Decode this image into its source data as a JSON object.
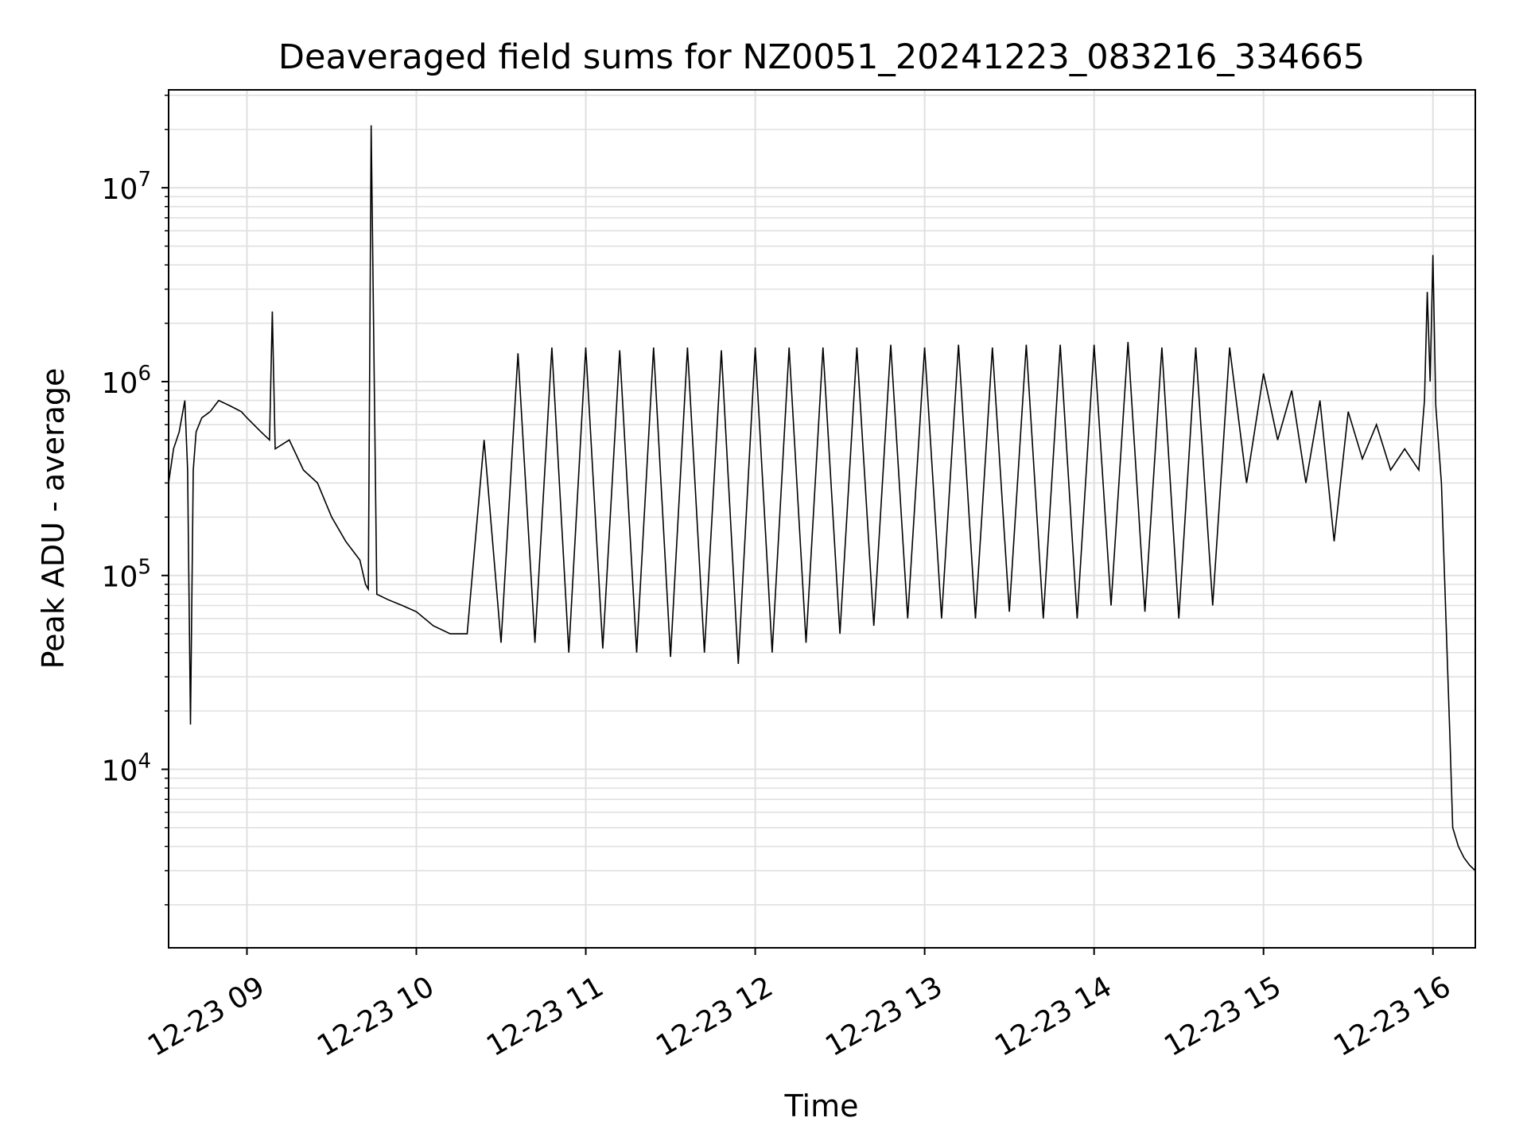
{
  "chart_data": {
    "type": "line",
    "title": "Deaveraged field sums for NZ0051_20241223_083216_334665",
    "xlabel": "Time",
    "ylabel": "Peak ADU - average",
    "y_scale": "log",
    "grid": true,
    "legend": "none",
    "line_color": "#000000",
    "grid_color": "#e0e0e0",
    "xlim": [
      "2024-12-23 08:32:16",
      "2024-12-23 16:15:00"
    ],
    "ylim": [
      1200,
      32000000
    ],
    "x_ticks": [
      {
        "value": "2024-12-23 09:00",
        "label": "12-23 09"
      },
      {
        "value": "2024-12-23 10:00",
        "label": "12-23 10"
      },
      {
        "value": "2024-12-23 11:00",
        "label": "12-23 11"
      },
      {
        "value": "2024-12-23 12:00",
        "label": "12-23 12"
      },
      {
        "value": "2024-12-23 13:00",
        "label": "12-23 13"
      },
      {
        "value": "2024-12-23 14:00",
        "label": "12-23 14"
      },
      {
        "value": "2024-12-23 15:00",
        "label": "12-23 15"
      },
      {
        "value": "2024-12-23 16:00",
        "label": "12-23 16"
      }
    ],
    "y_ticks": [
      {
        "value": 10000,
        "base": "10",
        "exp": "4"
      },
      {
        "value": 100000,
        "base": "10",
        "exp": "5"
      },
      {
        "value": 1000000,
        "base": "10",
        "exp": "6"
      },
      {
        "value": 10000000,
        "base": "10",
        "exp": "7"
      }
    ],
    "series": [
      {
        "x": [
          "2024-12-23 08:32:16",
          "2024-12-23 08:34:00",
          "2024-12-23 08:36:00",
          "2024-12-23 08:38:00",
          "2024-12-23 08:39:00",
          "2024-12-23 08:40:00",
          "2024-12-23 08:41:00",
          "2024-12-23 08:42:00",
          "2024-12-23 08:44:00",
          "2024-12-23 08:47:00",
          "2024-12-23 08:50:00",
          "2024-12-23 08:54:00",
          "2024-12-23 08:58:00",
          "2024-12-23 09:00:00",
          "2024-12-23 09:05:00",
          "2024-12-23 09:08:00",
          "2024-12-23 09:09:00",
          "2024-12-23 09:10:00",
          "2024-12-23 09:15:00",
          "2024-12-23 09:20:00",
          "2024-12-23 09:25:00",
          "2024-12-23 09:30:00",
          "2024-12-23 09:35:00",
          "2024-12-23 09:40:00",
          "2024-12-23 09:42:00",
          "2024-12-23 09:43:00",
          "2024-12-23 09:44:00",
          "2024-12-23 09:46:00",
          "2024-12-23 09:50:00",
          "2024-12-23 09:55:00",
          "2024-12-23 10:00:00",
          "2024-12-23 10:06:00",
          "2024-12-23 10:12:00",
          "2024-12-23 10:18:00",
          "2024-12-23 10:24:00",
          "2024-12-23 10:30:00",
          "2024-12-23 10:36:00",
          "2024-12-23 10:42:00",
          "2024-12-23 10:48:00",
          "2024-12-23 10:54:00",
          "2024-12-23 11:00:00",
          "2024-12-23 11:06:00",
          "2024-12-23 11:12:00",
          "2024-12-23 11:18:00",
          "2024-12-23 11:24:00",
          "2024-12-23 11:30:00",
          "2024-12-23 11:36:00",
          "2024-12-23 11:42:00",
          "2024-12-23 11:48:00",
          "2024-12-23 11:54:00",
          "2024-12-23 12:00:00",
          "2024-12-23 12:06:00",
          "2024-12-23 12:12:00",
          "2024-12-23 12:18:00",
          "2024-12-23 12:24:00",
          "2024-12-23 12:30:00",
          "2024-12-23 12:36:00",
          "2024-12-23 12:42:00",
          "2024-12-23 12:48:00",
          "2024-12-23 12:54:00",
          "2024-12-23 13:00:00",
          "2024-12-23 13:06:00",
          "2024-12-23 13:12:00",
          "2024-12-23 13:18:00",
          "2024-12-23 13:24:00",
          "2024-12-23 13:30:00",
          "2024-12-23 13:36:00",
          "2024-12-23 13:42:00",
          "2024-12-23 13:48:00",
          "2024-12-23 13:54:00",
          "2024-12-23 14:00:00",
          "2024-12-23 14:06:00",
          "2024-12-23 14:12:00",
          "2024-12-23 14:18:00",
          "2024-12-23 14:24:00",
          "2024-12-23 14:30:00",
          "2024-12-23 14:36:00",
          "2024-12-23 14:42:00",
          "2024-12-23 14:48:00",
          "2024-12-23 14:54:00",
          "2024-12-23 15:00:00",
          "2024-12-23 15:05:00",
          "2024-12-23 15:10:00",
          "2024-12-23 15:15:00",
          "2024-12-23 15:20:00",
          "2024-12-23 15:25:00",
          "2024-12-23 15:30:00",
          "2024-12-23 15:35:00",
          "2024-12-23 15:40:00",
          "2024-12-23 15:45:00",
          "2024-12-23 15:50:00",
          "2024-12-23 15:55:00",
          "2024-12-23 15:57:00",
          "2024-12-23 15:58:00",
          "2024-12-23 15:59:00",
          "2024-12-23 16:00:00",
          "2024-12-23 16:01:00",
          "2024-12-23 16:03:00",
          "2024-12-23 16:05:00",
          "2024-12-23 16:06:00",
          "2024-12-23 16:07:00",
          "2024-12-23 16:09:00",
          "2024-12-23 16:11:00",
          "2024-12-23 16:13:00",
          "2024-12-23 16:15:00"
        ],
        "y": [
          300000,
          450000,
          550000,
          800000,
          350000,
          17000,
          350000,
          550000,
          650000,
          700000,
          800000,
          750000,
          700000,
          650000,
          550000,
          500000,
          2300000,
          450000,
          500000,
          350000,
          300000,
          200000,
          150000,
          120000,
          90000,
          85000,
          21000000,
          80000,
          75000,
          70000,
          65000,
          55000,
          50000,
          50000,
          500000,
          45000,
          1400000,
          45000,
          1500000,
          40000,
          1500000,
          42000,
          1450000,
          40000,
          1500000,
          38000,
          1500000,
          40000,
          1450000,
          35000,
          1500000,
          40000,
          1500000,
          45000,
          1500000,
          50000,
          1500000,
          55000,
          1550000,
          60000,
          1500000,
          60000,
          1550000,
          60000,
          1500000,
          65000,
          1550000,
          60000,
          1550000,
          60000,
          1550000,
          70000,
          1600000,
          65000,
          1500000,
          60000,
          1500000,
          70000,
          1500000,
          300000,
          1100000,
          500000,
          900000,
          300000,
          800000,
          150000,
          700000,
          400000,
          600000,
          350000,
          450000,
          350000,
          800000,
          2900000,
          1000000,
          4500000,
          750000,
          300000,
          40000,
          15000,
          5000,
          4000,
          3500,
          3200,
          3000
        ]
      }
    ]
  }
}
